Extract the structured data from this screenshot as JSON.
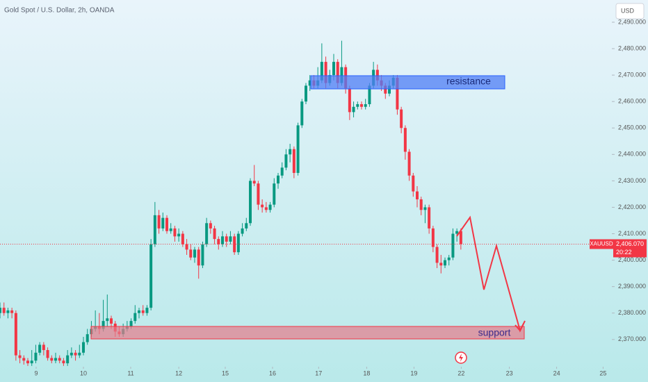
{
  "chart_data": {
    "type": "candlestick",
    "title": "Gold Spot / U.S. Dollar, 2h, OANDA",
    "currency": "USD",
    "symbol": "XAUUSD",
    "last_price": {
      "value": 2406.07,
      "label": "2,406.070"
    },
    "countdown": "20:22",
    "zones": {
      "resistance": "resistance",
      "support": "support"
    },
    "up_color": "#089981",
    "down_color": "#f23645",
    "ylim": [
      2359.7,
      2498.4
    ],
    "yticks": [
      {
        "value": 2370,
        "label": "2,370.000"
      },
      {
        "value": 2380,
        "label": "2,380.000"
      },
      {
        "value": 2390,
        "label": "2,390.000"
      },
      {
        "value": 2400,
        "label": "2,400.000"
      },
      {
        "value": 2410,
        "label": "2,410.000"
      },
      {
        "value": 2420,
        "label": "2,420.000"
      },
      {
        "value": 2430,
        "label": "2,430.000"
      },
      {
        "value": 2440,
        "label": "2,440.000"
      },
      {
        "value": 2450,
        "label": "2,450.000"
      },
      {
        "value": 2460,
        "label": "2,460.000"
      },
      {
        "value": 2470,
        "label": "2,470.000"
      },
      {
        "value": 2480,
        "label": "2,480.000"
      },
      {
        "value": 2490,
        "label": "2,490.000"
      }
    ],
    "xlim": [
      0,
      154
    ],
    "xticks": [
      {
        "value": 9.1,
        "label": "9"
      },
      {
        "value": 21,
        "label": "10"
      },
      {
        "value": 32.9,
        "label": "11"
      },
      {
        "value": 45,
        "label": "12"
      },
      {
        "value": 56.7,
        "label": "15"
      },
      {
        "value": 68.6,
        "label": "16"
      },
      {
        "value": 80.2,
        "label": "17"
      },
      {
        "value": 92.3,
        "label": "18"
      },
      {
        "value": 104.2,
        "label": "19"
      },
      {
        "value": 116.1,
        "label": "22"
      },
      {
        "value": 128.2,
        "label": "23"
      },
      {
        "value": 140.1,
        "label": "24"
      },
      {
        "value": 151.8,
        "label": "25"
      }
    ],
    "candles": [
      [
        2380,
        2384,
        2378,
        2382
      ],
      [
        2382,
        2384,
        2379,
        2380
      ],
      [
        2380,
        2382,
        2378,
        2381
      ],
      [
        2381,
        2382,
        2378,
        2380
      ],
      [
        2380,
        2381,
        2362,
        2364
      ],
      [
        2364,
        2366,
        2361,
        2363
      ],
      [
        2363,
        2364,
        2360.5,
        2362
      ],
      [
        2362,
        2363,
        2360,
        2361
      ],
      [
        2361,
        2366,
        2360,
        2362
      ],
      [
        2362,
        2368,
        2361,
        2365
      ],
      [
        2365,
        2369,
        2364,
        2368
      ],
      [
        2368,
        2369,
        2364,
        2366
      ],
      [
        2366,
        2367,
        2362,
        2363
      ],
      [
        2363,
        2364,
        2361,
        2362
      ],
      [
        2362,
        2365,
        2361,
        2363
      ],
      [
        2363,
        2364,
        2361,
        2362
      ],
      [
        2362,
        2363,
        2360,
        2361
      ],
      [
        2361,
        2366,
        2360,
        2364
      ],
      [
        2364,
        2367,
        2363,
        2365
      ],
      [
        2365,
        2366,
        2362,
        2364
      ],
      [
        2364,
        2368,
        2363,
        2365
      ],
      [
        2365,
        2371,
        2364,
        2369
      ],
      [
        2369,
        2374,
        2368,
        2372
      ],
      [
        2372,
        2377,
        2371,
        2374
      ],
      [
        2374,
        2381,
        2373,
        2375
      ],
      [
        2375,
        2380,
        2372,
        2374
      ],
      [
        2374,
        2385,
        2373,
        2377
      ],
      [
        2377,
        2387,
        2375,
        2378
      ],
      [
        2378,
        2379,
        2374,
        2376
      ],
      [
        2376,
        2377,
        2371,
        2373
      ],
      [
        2373,
        2375,
        2371,
        2372
      ],
      [
        2372,
        2376,
        2371,
        2374
      ],
      [
        2374,
        2377,
        2373,
        2375
      ],
      [
        2375,
        2378,
        2374,
        2377
      ],
      [
        2377,
        2383,
        2376,
        2380
      ],
      [
        2380,
        2382,
        2378,
        2381
      ],
      [
        2381,
        2383,
        2379,
        2380
      ],
      [
        2380,
        2383,
        2379,
        2382
      ],
      [
        2382,
        2408,
        2381,
        2406
      ],
      [
        2406,
        2422,
        2405,
        2417
      ],
      [
        2417,
        2419,
        2410,
        2412
      ],
      [
        2412,
        2418,
        2411,
        2416
      ],
      [
        2416,
        2417,
        2410,
        2411
      ],
      [
        2411,
        2414,
        2410,
        2412
      ],
      [
        2412,
        2413,
        2407,
        2409
      ],
      [
        2409,
        2412,
        2407,
        2410
      ],
      [
        2410,
        2411,
        2405,
        2406
      ],
      [
        2406,
        2408,
        2402,
        2404
      ],
      [
        2404,
        2406,
        2400,
        2401
      ],
      [
        2401,
        2405,
        2399,
        2404
      ],
      [
        2404,
        2405,
        2393,
        2398
      ],
      [
        2398,
        2407,
        2397,
        2406
      ],
      [
        2406,
        2416,
        2405,
        2414
      ],
      [
        2414,
        2415,
        2410,
        2412
      ],
      [
        2412,
        2413,
        2406,
        2408
      ],
      [
        2408,
        2409,
        2404,
        2406
      ],
      [
        2406,
        2411,
        2405,
        2409
      ],
      [
        2409,
        2410,
        2405,
        2407
      ],
      [
        2407,
        2411,
        2406,
        2409
      ],
      [
        2409,
        2410,
        2402,
        2403
      ],
      [
        2403,
        2411,
        2402,
        2410
      ],
      [
        2410,
        2414,
        2409,
        2412
      ],
      [
        2412,
        2416,
        2411,
        2414
      ],
      [
        2414,
        2431,
        2413,
        2430
      ],
      [
        2430,
        2436,
        2428,
        2429
      ],
      [
        2429,
        2430,
        2419,
        2421
      ],
      [
        2421,
        2423,
        2418,
        2420
      ],
      [
        2420,
        2422,
        2418,
        2419
      ],
      [
        2419,
        2422,
        2418,
        2421
      ],
      [
        2421,
        2431,
        2420,
        2429
      ],
      [
        2429,
        2433,
        2427,
        2432
      ],
      [
        2432,
        2437,
        2431,
        2435
      ],
      [
        2435,
        2442,
        2434,
        2440
      ],
      [
        2440,
        2444,
        2437,
        2442
      ],
      [
        2442,
        2443,
        2431,
        2433
      ],
      [
        2433,
        2452,
        2432,
        2451
      ],
      [
        2451,
        2461,
        2450,
        2460
      ],
      [
        2460,
        2467,
        2459,
        2466
      ],
      [
        2466,
        2470,
        2464,
        2468
      ],
      [
        2468,
        2470,
        2465,
        2466
      ],
      [
        2466,
        2473,
        2465,
        2468
      ],
      [
        2468,
        2482,
        2467,
        2475
      ],
      [
        2475,
        2477,
        2465,
        2467
      ],
      [
        2467,
        2472,
        2466,
        2470
      ],
      [
        2470,
        2478,
        2468,
        2475
      ],
      [
        2475,
        2476,
        2465,
        2467
      ],
      [
        2467,
        2483,
        2466,
        2473
      ],
      [
        2473,
        2474,
        2463,
        2465
      ],
      [
        2465,
        2466,
        2453,
        2456
      ],
      [
        2456,
        2460,
        2454,
        2458
      ],
      [
        2458,
        2460,
        2457,
        2459
      ],
      [
        2459,
        2460,
        2457,
        2458
      ],
      [
        2458,
        2461,
        2457,
        2459
      ],
      [
        2459,
        2467,
        2458,
        2466
      ],
      [
        2466,
        2475,
        2465,
        2472
      ],
      [
        2472,
        2474,
        2466,
        2468
      ],
      [
        2468,
        2470,
        2464,
        2466
      ],
      [
        2466,
        2467,
        2461,
        2463
      ],
      [
        2463,
        2468,
        2462,
        2466
      ],
      [
        2466,
        2470,
        2465,
        2469
      ],
      [
        2469,
        2470,
        2455,
        2457
      ],
      [
        2457,
        2458,
        2448,
        2450
      ],
      [
        2450,
        2451,
        2438,
        2441
      ],
      [
        2441,
        2442,
        2430,
        2432
      ],
      [
        2432,
        2433,
        2424,
        2426
      ],
      [
        2426,
        2428,
        2420,
        2423
      ],
      [
        2423,
        2424,
        2417,
        2419
      ],
      [
        2419,
        2421,
        2414,
        2420
      ],
      [
        2420,
        2421,
        2410,
        2412
      ],
      [
        2412,
        2413,
        2403,
        2405
      ],
      [
        2405,
        2406,
        2397,
        2399
      ],
      [
        2399,
        2402,
        2395,
        2398
      ],
      [
        2398,
        2401,
        2397,
        2400
      ],
      [
        2400,
        2402,
        2398,
        2401
      ],
      [
        2401,
        2412,
        2400,
        2410
      ],
      [
        2410,
        2412,
        2407,
        2411
      ],
      [
        2411,
        2412,
        2404,
        2406.07
      ]
    ]
  }
}
